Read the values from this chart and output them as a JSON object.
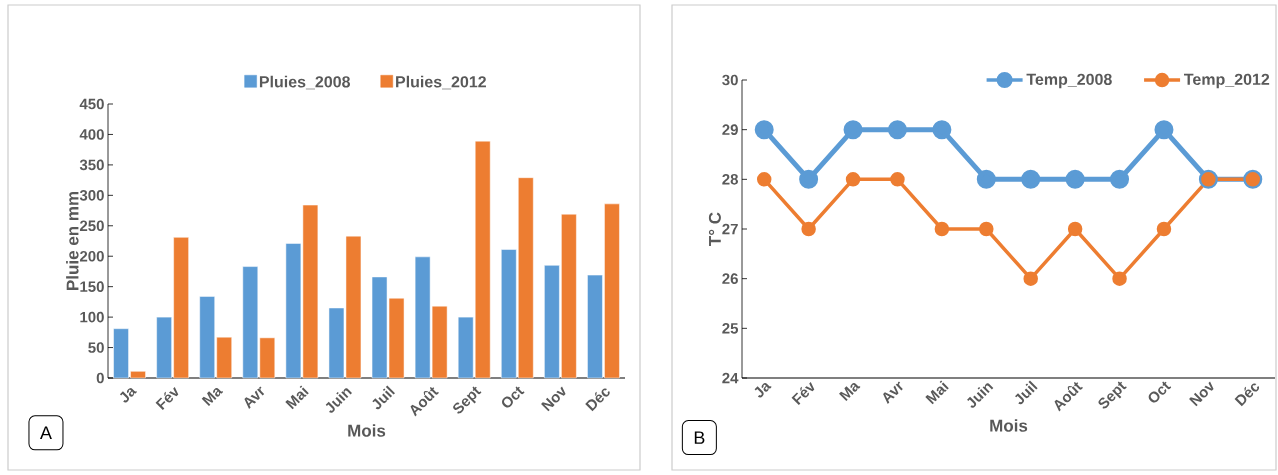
{
  "chart_data": [
    {
      "type": "bar",
      "categories": [
        "Ja",
        "Fév",
        "Ma",
        "Avr",
        "Mai",
        "Juin",
        "Juil",
        "Août",
        "Sept",
        "Oct",
        "Nov",
        "Déc"
      ],
      "series": [
        {
          "name": "Pluies_2008",
          "color": "#5b9bd5",
          "values": [
            81,
            100,
            134,
            183,
            221,
            115,
            166,
            199,
            100,
            211,
            185,
            169
          ]
        },
        {
          "name": "Pluies_2012",
          "color": "#ed7d31",
          "values": [
            11,
            231,
            67,
            66,
            284,
            233,
            131,
            118,
            389,
            329,
            269,
            286
          ]
        }
      ],
      "xlabel": "Mois",
      "ylabel": "Pluie en mm",
      "ylim": [
        0,
        450
      ],
      "yticks": [
        0,
        50,
        100,
        150,
        200,
        250,
        300,
        350,
        400,
        450
      ],
      "legend": "top",
      "annotations": [
        "A"
      ]
    },
    {
      "type": "line",
      "categories": [
        "Ja",
        "Fév",
        "Ma",
        "Avr",
        "Mai",
        "Juin",
        "Juil",
        "Août",
        "Sept",
        "Oct",
        "Nov",
        "Déc"
      ],
      "series": [
        {
          "name": "Temp_2008",
          "color": "#5b9bd5",
          "values": [
            29,
            28,
            29,
            29,
            29,
            28,
            28,
            28,
            28,
            29,
            28,
            28
          ]
        },
        {
          "name": "Temp_2012",
          "color": "#ed7d31",
          "values": [
            28,
            27,
            28,
            28,
            27,
            27,
            26,
            27,
            26,
            27,
            28,
            28
          ]
        }
      ],
      "xlabel": "Mois",
      "ylabel": "T° C",
      "ylim": [
        24,
        30
      ],
      "yticks": [
        24,
        25,
        26,
        27,
        28,
        29,
        30
      ],
      "legend": "top right",
      "marker": "circle",
      "line_style": "solid",
      "annotations": [
        "B"
      ]
    }
  ]
}
